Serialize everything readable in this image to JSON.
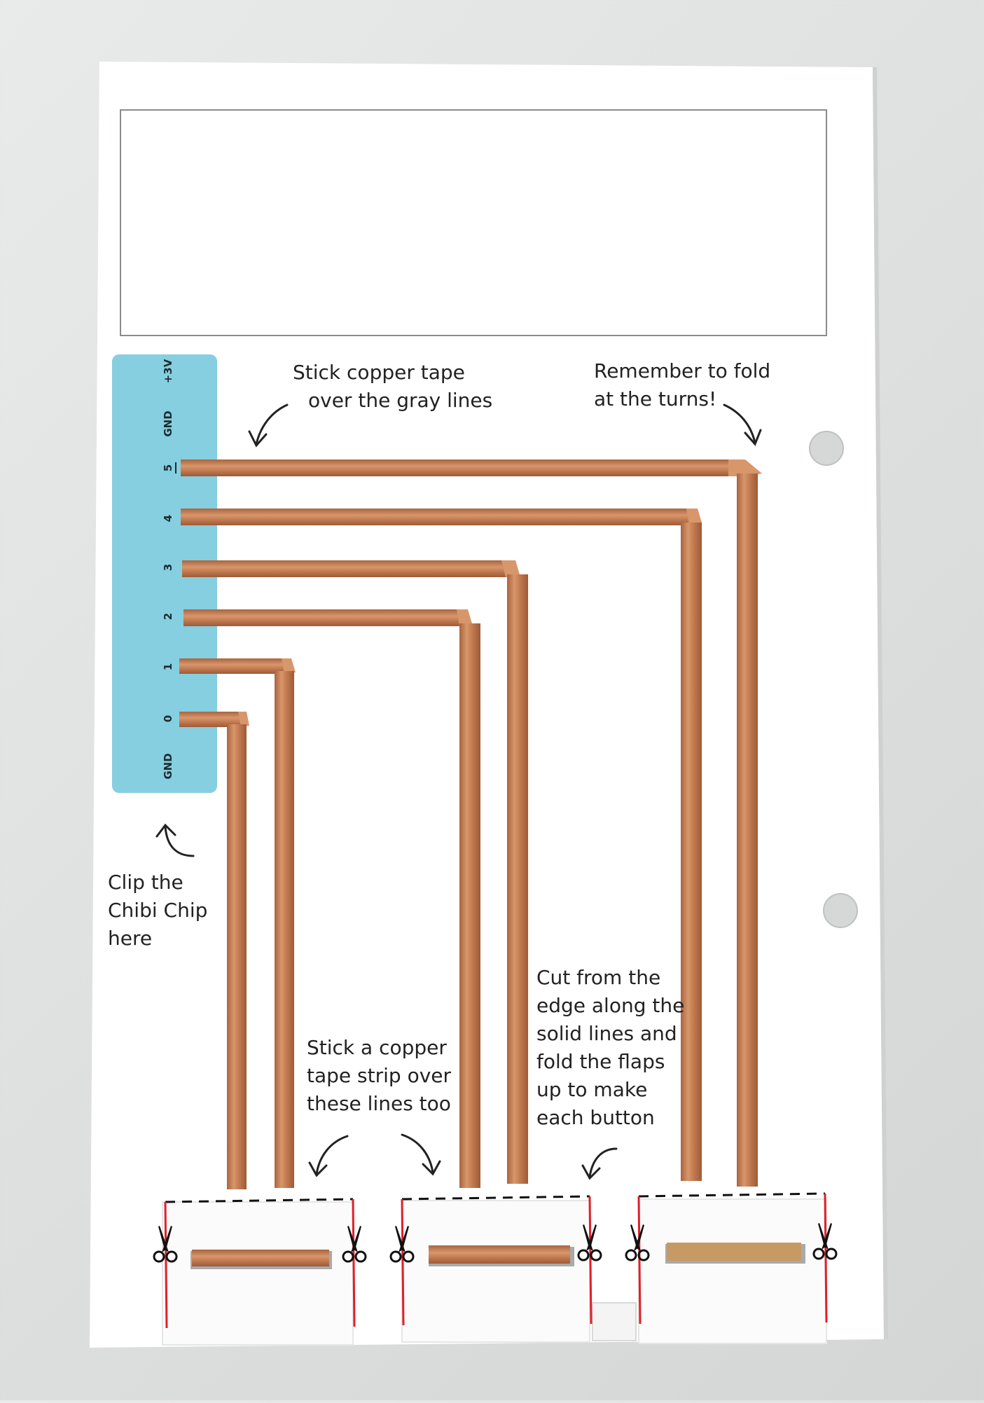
{
  "notes": {
    "stick_tape": [
      "Stick copper tape",
      "over the gray lines"
    ],
    "remember_fold": [
      "Remember to fold",
      "at the turns!"
    ],
    "clip_chip": [
      "Clip the",
      "Chibi Chip",
      "here"
    ],
    "cut_edge": [
      "Cut from the",
      "edge along the",
      "solid lines and",
      "fold the flaps",
      "up to make",
      "each button"
    ],
    "stick_strip": [
      "Stick a copper",
      "tape strip over",
      "these lines too"
    ]
  },
  "chip_pins": [
    "+3V",
    "GND",
    "5",
    "4",
    "3",
    "2",
    "1",
    "0",
    "GND"
  ],
  "colors": {
    "paper": "#ffffff",
    "chip_area": "#85cfe0",
    "copper": "#c7835a",
    "copper_dark": "#a8643f",
    "cut_line": "#e01f2a",
    "ink": "#222222"
  },
  "icons": [
    "arrow-icon",
    "scissors-icon",
    "punch-hole-icon"
  ]
}
